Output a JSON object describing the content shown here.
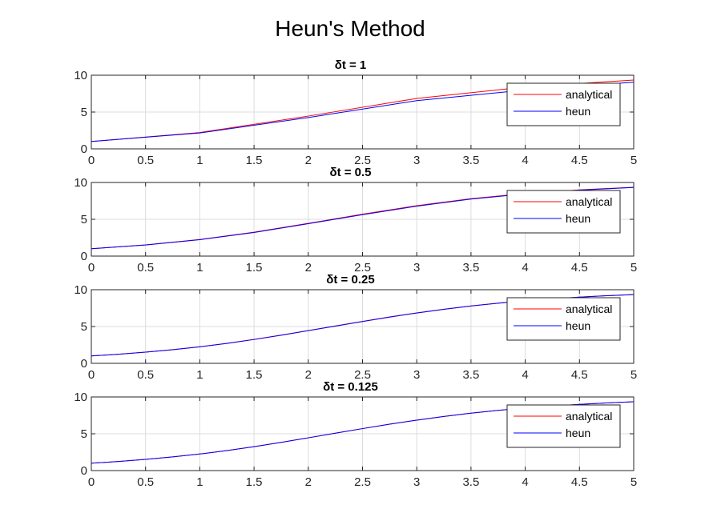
{
  "figure": {
    "title": "Heun's Method",
    "colors": {
      "analytical": "#ff0000",
      "heun": "#0000ff",
      "grid": "#dcdcdc",
      "axes": "#262626"
    }
  },
  "chart_data": [
    {
      "type": "line",
      "title": "δt = 1",
      "xlim": [
        0,
        5
      ],
      "ylim": [
        0,
        10
      ],
      "xticks": [
        "0",
        "0.5",
        "1",
        "1.5",
        "2",
        "2.5",
        "3",
        "3.5",
        "4",
        "4.5",
        "5"
      ],
      "yticks": [
        "0",
        "5",
        "10"
      ],
      "grid": true,
      "legend": "top-right",
      "series": [
        {
          "name": "analytical",
          "color": "#ff0000",
          "x": [
            0,
            1,
            2,
            3,
            4,
            5
          ],
          "y": [
            1.0,
            2.22,
            4.45,
            6.85,
            8.4,
            9.35
          ]
        },
        {
          "name": "heun",
          "color": "#0000ff",
          "x": [
            0,
            1,
            2,
            3,
            4,
            5
          ],
          "y": [
            1.0,
            2.16,
            4.25,
            6.55,
            8.0,
            9.05
          ]
        }
      ]
    },
    {
      "type": "line",
      "title": "δt = 0.5",
      "xlim": [
        0,
        5
      ],
      "ylim": [
        0,
        10
      ],
      "xticks": [
        "0",
        "0.5",
        "1",
        "1.5",
        "2",
        "2.5",
        "3",
        "3.5",
        "4",
        "4.5",
        "5"
      ],
      "yticks": [
        "0",
        "5",
        "10"
      ],
      "grid": true,
      "legend": "top-right",
      "series": [
        {
          "name": "analytical",
          "color": "#ff0000",
          "x": [
            0,
            0.5,
            1,
            1.5,
            2,
            2.5,
            3,
            3.5,
            4,
            4.5,
            5
          ],
          "y": [
            1.0,
            1.52,
            2.25,
            3.25,
            4.45,
            5.7,
            6.85,
            7.8,
            8.5,
            9.0,
            9.35
          ]
        },
        {
          "name": "heun",
          "color": "#0000ff",
          "x": [
            0,
            0.5,
            1,
            1.5,
            2,
            2.5,
            3,
            3.5,
            4,
            4.5,
            5
          ],
          "y": [
            1.0,
            1.51,
            2.23,
            3.21,
            4.4,
            5.63,
            6.78,
            7.75,
            8.45,
            8.97,
            9.32
          ]
        }
      ]
    },
    {
      "type": "line",
      "title": "δt = 0.25",
      "xlim": [
        0,
        5
      ],
      "ylim": [
        0,
        10
      ],
      "xticks": [
        "0",
        "0.5",
        "1",
        "1.5",
        "2",
        "2.5",
        "3",
        "3.5",
        "4",
        "4.5",
        "5"
      ],
      "yticks": [
        "0",
        "5",
        "10"
      ],
      "grid": true,
      "legend": "top-right",
      "series": [
        {
          "name": "analytical",
          "color": "#ff0000",
          "x": [
            0,
            0.25,
            0.5,
            0.75,
            1,
            1.25,
            1.5,
            1.75,
            2,
            2.25,
            2.5,
            2.75,
            3,
            3.25,
            3.5,
            3.75,
            4,
            4.25,
            4.5,
            4.75,
            5
          ],
          "y": [
            1.0,
            1.24,
            1.52,
            1.86,
            2.25,
            2.72,
            3.25,
            3.83,
            4.45,
            5.08,
            5.7,
            6.3,
            6.85,
            7.35,
            7.8,
            8.18,
            8.5,
            8.77,
            9.0,
            9.19,
            9.35
          ]
        },
        {
          "name": "heun",
          "color": "#0000ff",
          "x": [
            0,
            0.25,
            0.5,
            0.75,
            1,
            1.25,
            1.5,
            1.75,
            2,
            2.25,
            2.5,
            2.75,
            3,
            3.25,
            3.5,
            3.75,
            4,
            4.25,
            4.5,
            4.75,
            5
          ],
          "y": [
            1.0,
            1.24,
            1.52,
            1.85,
            2.24,
            2.71,
            3.24,
            3.82,
            4.44,
            5.06,
            5.68,
            6.28,
            6.84,
            7.34,
            7.79,
            8.17,
            8.49,
            8.76,
            8.99,
            9.18,
            9.34
          ]
        }
      ]
    },
    {
      "type": "line",
      "title": "δt = 0.125",
      "xlim": [
        0,
        5
      ],
      "ylim": [
        0,
        10
      ],
      "xticks": [
        "0",
        "0.5",
        "1",
        "1.5",
        "2",
        "2.5",
        "3",
        "3.5",
        "4",
        "4.5",
        "5"
      ],
      "yticks": [
        "0",
        "5",
        "10"
      ],
      "grid": true,
      "legend": "top-right",
      "series": [
        {
          "name": "analytical",
          "color": "#ff0000",
          "x": [
            0,
            0.25,
            0.5,
            0.75,
            1,
            1.25,
            1.5,
            1.75,
            2,
            2.25,
            2.5,
            2.75,
            3,
            3.25,
            3.5,
            3.75,
            4,
            4.25,
            4.5,
            4.75,
            5
          ],
          "y": [
            1.0,
            1.24,
            1.52,
            1.86,
            2.25,
            2.72,
            3.25,
            3.83,
            4.45,
            5.08,
            5.7,
            6.3,
            6.85,
            7.35,
            7.8,
            8.18,
            8.5,
            8.77,
            9.0,
            9.19,
            9.35
          ]
        },
        {
          "name": "heun",
          "color": "#0000ff",
          "x": [
            0,
            0.25,
            0.5,
            0.75,
            1,
            1.25,
            1.5,
            1.75,
            2,
            2.25,
            2.5,
            2.75,
            3,
            3.25,
            3.5,
            3.75,
            4,
            4.25,
            4.5,
            4.75,
            5
          ],
          "y": [
            1.0,
            1.24,
            1.52,
            1.86,
            2.25,
            2.72,
            3.25,
            3.83,
            4.45,
            5.08,
            5.7,
            6.3,
            6.85,
            7.35,
            7.8,
            8.18,
            8.5,
            8.77,
            9.0,
            9.19,
            9.35
          ]
        }
      ]
    }
  ]
}
